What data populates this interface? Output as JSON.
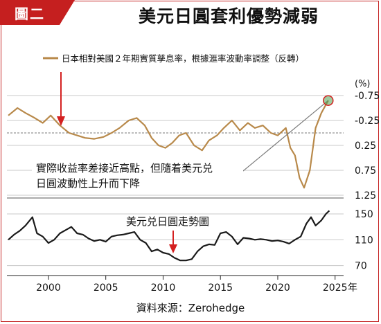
{
  "header": {
    "badge": "圖二",
    "title": "美元日圓套利優勢減弱"
  },
  "footer": {
    "source": "資料來源：Zerohedge"
  },
  "colors": {
    "frame": "#c52525",
    "badge": "#c51f1f",
    "rate_series": "#b8894a",
    "fx_series": "#1a1a1a",
    "arrow": "#d42020",
    "annotation_line": "#7a7a7a"
  },
  "chart_data": [
    {
      "type": "line",
      "legend": "日本相對美國２年期實質孳息率，根據滙率波動率調整（反轉）",
      "legend_position": "top-left",
      "y_unit": "(%)",
      "y_axis_side": "right",
      "y_inverted": true,
      "ylim": [
        -1.0,
        1.5
      ],
      "yticks": [
        "-0.75",
        "-0.25",
        "0.25",
        "0.75",
        "1.25"
      ],
      "ytick_values": [
        -0.75,
        -0.25,
        0.25,
        0.75,
        1.25
      ],
      "grid": "horizontal dashed",
      "reference_line": 0,
      "annotation": "實際收益率差接近高點，但隨着美元兑日圓波動性上升而下降",
      "series": [
        {
          "x": [
            1996.5,
            1997.3,
            1998.0,
            1998.8,
            1999.5,
            2000.2,
            2001.0,
            2001.8,
            2002.5,
            2003.2,
            2004.0,
            2004.8,
            2005.5,
            2006.2,
            2007.0,
            2007.7,
            2008.4,
            2009.0,
            2009.6,
            2010.2,
            2010.8,
            2011.4,
            2012.0,
            2012.7,
            2013.4,
            2014.0,
            2014.7,
            2015.3,
            2016.0,
            2016.7,
            2017.4,
            2018.0,
            2018.7,
            2019.4,
            2020.0,
            2020.7,
            2021.1,
            2021.5,
            2021.9,
            2022.3,
            2022.8,
            2023.3,
            2023.8,
            2024.4
          ],
          "y": [
            -0.35,
            -0.5,
            -0.4,
            -0.3,
            -0.2,
            -0.35,
            -0.15,
            0.0,
            0.05,
            0.1,
            0.12,
            0.08,
            0.0,
            -0.1,
            -0.25,
            -0.3,
            -0.15,
            0.1,
            0.25,
            0.3,
            0.2,
            0.05,
            0.0,
            0.25,
            0.35,
            0.15,
            0.05,
            -0.1,
            -0.25,
            -0.05,
            -0.2,
            -0.1,
            -0.15,
            0.0,
            0.05,
            -0.1,
            0.3,
            0.45,
            0.9,
            1.1,
            0.75,
            -0.1,
            -0.4,
            -0.65
          ]
        }
      ]
    },
    {
      "type": "line",
      "legend": "美元兑日圓走勢圖",
      "y_axis_side": "right",
      "ylim": [
        60,
        165
      ],
      "yticks": [
        "150",
        "110",
        "70"
      ],
      "ytick_values": [
        150,
        110,
        70
      ],
      "xlim": [
        1996.5,
        2025.5
      ],
      "xticks": [
        "2000",
        "2005",
        "2010",
        "2015",
        "2020",
        "2025"
      ],
      "xtick_values": [
        2000,
        2005,
        2010,
        2015,
        2020,
        2025
      ],
      "x_unit": "年",
      "series": [
        {
          "x": [
            1996.5,
            1997.0,
            1997.5,
            1998.0,
            1998.6,
            1999.0,
            1999.5,
            2000.0,
            2000.5,
            2001.0,
            2001.5,
            2002.0,
            2002.5,
            2003.0,
            2003.5,
            2004.0,
            2004.5,
            2005.0,
            2005.5,
            2006.0,
            2006.5,
            2007.0,
            2007.5,
            2008.0,
            2008.5,
            2009.0,
            2009.5,
            2010.0,
            2010.5,
            2011.0,
            2011.5,
            2012.0,
            2012.5,
            2013.0,
            2013.5,
            2014.0,
            2014.5,
            2015.0,
            2015.5,
            2016.0,
            2016.5,
            2017.0,
            2017.5,
            2018.0,
            2018.5,
            2019.0,
            2019.5,
            2020.0,
            2020.5,
            2021.0,
            2021.5,
            2022.0,
            2022.5,
            2022.9,
            2023.3,
            2023.8,
            2024.2,
            2024.5
          ],
          "y": [
            110,
            118,
            124,
            132,
            145,
            120,
            115,
            105,
            110,
            120,
            125,
            130,
            120,
            118,
            112,
            108,
            110,
            107,
            115,
            117,
            118,
            120,
            122,
            110,
            105,
            92,
            95,
            90,
            88,
            82,
            78,
            78,
            80,
            92,
            100,
            103,
            102,
            120,
            122,
            115,
            103,
            113,
            112,
            110,
            111,
            110,
            108,
            109,
            107,
            104,
            110,
            115,
            135,
            145,
            132,
            140,
            150,
            155
          ]
        }
      ]
    }
  ]
}
